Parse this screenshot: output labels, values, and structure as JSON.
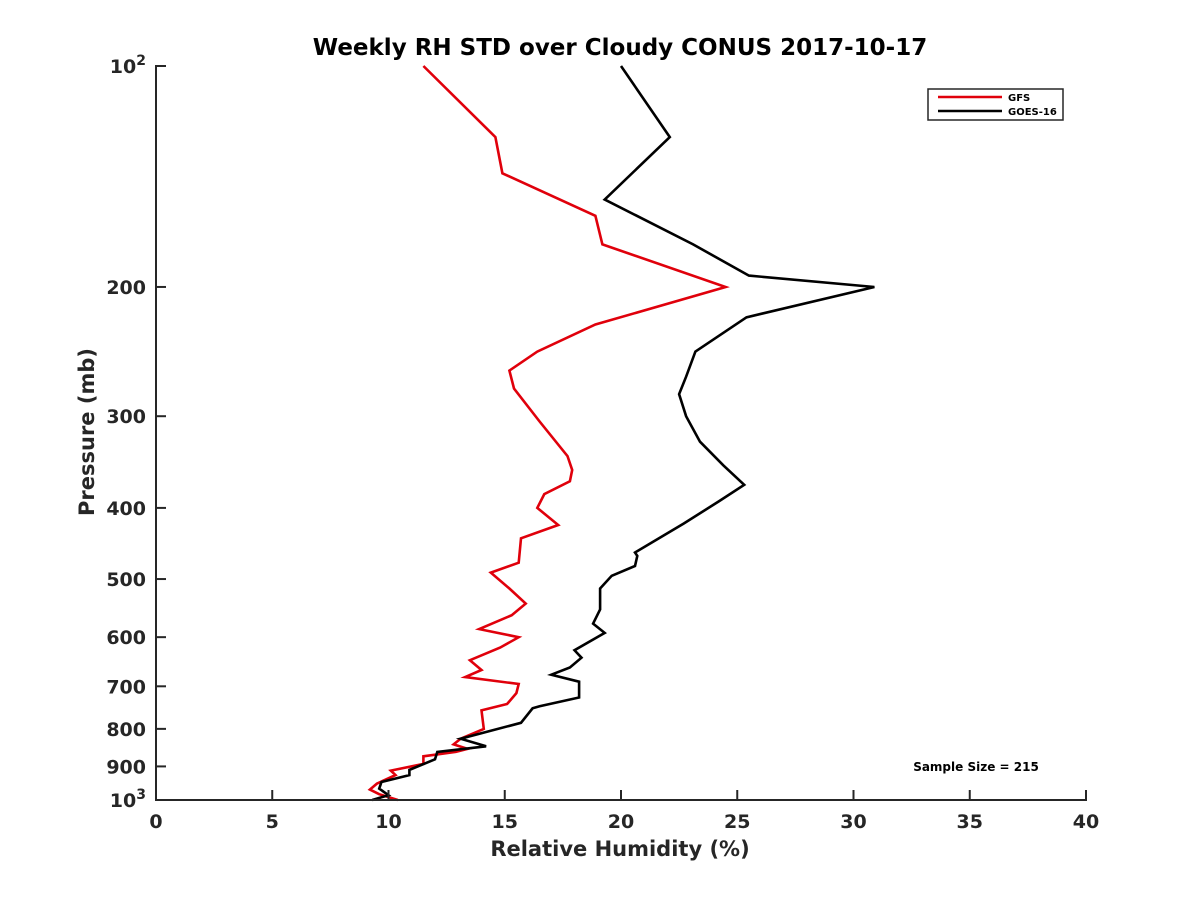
{
  "chart_data": {
    "type": "line",
    "title": "Weekly RH STD over Cloudy CONUS 2017-10-17",
    "xlabel": "Relative Humidity (%)",
    "ylabel": "Pressure (mb)",
    "xlim": [
      0,
      40
    ],
    "ylim": [
      100,
      1000
    ],
    "y_scale": "log",
    "y_reversed": true,
    "x_ticks": [
      0,
      5,
      10,
      15,
      20,
      25,
      30,
      35,
      40
    ],
    "x_tick_labels": [
      "0",
      "5",
      "10",
      "15",
      "20",
      "25",
      "30",
      "35",
      "40"
    ],
    "y_ticks": [
      100,
      200,
      300,
      400,
      500,
      600,
      700,
      800,
      900,
      1000
    ],
    "y_tick_labels": [
      {
        "base": "10",
        "sup": "2"
      },
      {
        "base": "200",
        "sup": ""
      },
      {
        "base": "300",
        "sup": ""
      },
      {
        "base": "400",
        "sup": ""
      },
      {
        "base": "500",
        "sup": ""
      },
      {
        "base": "600",
        "sup": ""
      },
      {
        "base": "700",
        "sup": ""
      },
      {
        "base": "800",
        "sup": ""
      },
      {
        "base": "900",
        "sup": ""
      },
      {
        "base": "10",
        "sup": "3"
      }
    ],
    "grid": false,
    "legend_position": "top-right",
    "annotation": "Sample Size = 215",
    "series": [
      {
        "name": "GFS",
        "color": "#e0000b",
        "points": [
          [
            11.5,
            100
          ],
          [
            14.6,
            125
          ],
          [
            14.9,
            140
          ],
          [
            18.9,
            160
          ],
          [
            19.2,
            175
          ],
          [
            24.5,
            200
          ],
          [
            18.9,
            225
          ],
          [
            16.4,
            245
          ],
          [
            15.2,
            260
          ],
          [
            15.4,
            275
          ],
          [
            16.5,
            305
          ],
          [
            17.7,
            340
          ],
          [
            17.9,
            355
          ],
          [
            17.8,
            368
          ],
          [
            16.7,
            383
          ],
          [
            16.4,
            400
          ],
          [
            17.3,
            422
          ],
          [
            15.7,
            440
          ],
          [
            15.6,
            475
          ],
          [
            14.4,
            490
          ],
          [
            15.2,
            515
          ],
          [
            15.9,
            540
          ],
          [
            15.3,
            560
          ],
          [
            13.9,
            585
          ],
          [
            15.6,
            600
          ],
          [
            14.8,
            620
          ],
          [
            13.5,
            645
          ],
          [
            14.0,
            665
          ],
          [
            13.3,
            680
          ],
          [
            15.6,
            695
          ],
          [
            15.5,
            715
          ],
          [
            15.1,
            740
          ],
          [
            14.0,
            755
          ],
          [
            14.1,
            800
          ],
          [
            13.1,
            825
          ],
          [
            12.8,
            840
          ],
          [
            13.4,
            852
          ],
          [
            12.9,
            860
          ],
          [
            11.5,
            872
          ],
          [
            11.5,
            893
          ],
          [
            10.1,
            912
          ],
          [
            10.3,
            925
          ],
          [
            9.5,
            950
          ],
          [
            9.2,
            968
          ],
          [
            9.6,
            982
          ],
          [
            10.4,
            1000
          ]
        ]
      },
      {
        "name": "GOES-16",
        "color": "#000000",
        "points": [
          [
            20.0,
            100
          ],
          [
            22.1,
            125
          ],
          [
            19.3,
            152
          ],
          [
            23.1,
            175
          ],
          [
            25.5,
            193
          ],
          [
            30.9,
            200
          ],
          [
            25.4,
            220
          ],
          [
            23.2,
            245
          ],
          [
            22.8,
            265
          ],
          [
            22.5,
            280
          ],
          [
            22.8,
            300
          ],
          [
            23.4,
            325
          ],
          [
            24.4,
            350
          ],
          [
            25.3,
            372
          ],
          [
            24.2,
            392
          ],
          [
            22.7,
            420
          ],
          [
            20.6,
            460
          ],
          [
            20.7,
            465
          ],
          [
            20.6,
            480
          ],
          [
            19.6,
            495
          ],
          [
            19.1,
            515
          ],
          [
            19.1,
            550
          ],
          [
            18.8,
            575
          ],
          [
            19.3,
            592
          ],
          [
            18.0,
            625
          ],
          [
            18.3,
            640
          ],
          [
            17.8,
            660
          ],
          [
            17.0,
            675
          ],
          [
            18.2,
            690
          ],
          [
            18.2,
            725
          ],
          [
            16.5,
            745
          ],
          [
            16.2,
            750
          ],
          [
            15.7,
            785
          ],
          [
            13.1,
            825
          ],
          [
            14.2,
            845
          ],
          [
            12.1,
            860
          ],
          [
            12.0,
            880
          ],
          [
            10.9,
            910
          ],
          [
            10.9,
            925
          ],
          [
            9.7,
            945
          ],
          [
            9.6,
            965
          ],
          [
            10.0,
            985
          ],
          [
            9.3,
            1000
          ]
        ]
      }
    ]
  }
}
